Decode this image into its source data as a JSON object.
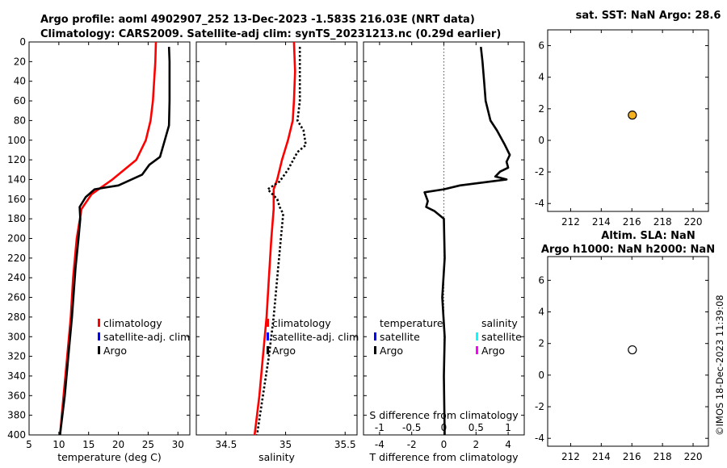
{
  "header": {
    "title_line1": "Argo profile: aoml 4902907_252 13-Dec-2023 -1.583S 216.03E (NRT data)",
    "title_line2": "Climatology: CARS2009. Satellite-adj clim: synTS_20231213.nc (0.29d earlier)"
  },
  "timestamp": "©IMOS 18-Dec-2023 11:39:08",
  "colors": {
    "climatology": "#ff0000",
    "satellite": "#0000ff",
    "argo": "#000000",
    "sat_salinity": "#00ffff",
    "argo_salinity": "#ff00ff",
    "sst_marker": "#f5b21e"
  },
  "chart_data": [
    {
      "id": "temperature",
      "type": "line",
      "xlabel": "temperature (deg C)",
      "ylabel": "",
      "xlim": [
        5,
        32
      ],
      "ylim": [
        0,
        400
      ],
      "y_reversed": true,
      "xticks": [
        "5",
        "10",
        "15",
        "20",
        "25",
        "30"
      ],
      "yticks": [
        "0",
        "20",
        "40",
        "60",
        "80",
        "100",
        "120",
        "140",
        "160",
        "180",
        "200",
        "220",
        "240",
        "260",
        "280",
        "300",
        "320",
        "340",
        "360",
        "380",
        "400"
      ],
      "legend": [
        "climatology",
        "satellite-adj. clim",
        "Argo"
      ],
      "series": [
        {
          "name": "climatology",
          "color": "#ff0000",
          "points": [
            [
              26.3,
              0
            ],
            [
              26.2,
              20
            ],
            [
              26.0,
              40
            ],
            [
              25.8,
              60
            ],
            [
              25.4,
              80
            ],
            [
              24.6,
              100
            ],
            [
              23.0,
              120
            ],
            [
              19.0,
              140
            ],
            [
              15.5,
              155
            ],
            [
              13.8,
              170
            ],
            [
              13.0,
              200
            ],
            [
              12.4,
              240
            ],
            [
              12.0,
              280
            ],
            [
              11.4,
              320
            ],
            [
              10.8,
              360
            ],
            [
              10.2,
              400
            ]
          ]
        },
        {
          "name": "Argo",
          "color": "#000000",
          "points": [
            [
              28.5,
              5
            ],
            [
              28.6,
              20
            ],
            [
              28.6,
              60
            ],
            [
              28.5,
              85
            ],
            [
              27.8,
              100
            ],
            [
              27.0,
              117
            ],
            [
              25.2,
              125
            ],
            [
              24.0,
              135
            ],
            [
              20.0,
              146
            ],
            [
              16.0,
              150
            ],
            [
              14.5,
              158
            ],
            [
              14.0,
              163
            ],
            [
              13.5,
              168
            ],
            [
              13.6,
              180
            ],
            [
              13.3,
              200
            ],
            [
              12.8,
              230
            ],
            [
              12.2,
              280
            ],
            [
              11.6,
              320
            ],
            [
              11.0,
              360
            ],
            [
              10.2,
              400
            ]
          ]
        }
      ]
    },
    {
      "id": "salinity",
      "type": "line",
      "xlabel": "salinity",
      "xlim": [
        34.25,
        35.6
      ],
      "ylim": [
        0,
        400
      ],
      "y_reversed": true,
      "xticks": [
        "34.5",
        "35",
        "35.5"
      ],
      "legend": [
        "climatology",
        "satellite-adj. clim",
        "Argo"
      ],
      "series": [
        {
          "name": "climatology",
          "color": "#ff0000",
          "points": [
            [
              35.07,
              0
            ],
            [
              35.08,
              30
            ],
            [
              35.07,
              60
            ],
            [
              35.06,
              80
            ],
            [
              35.02,
              100
            ],
            [
              34.97,
              120
            ],
            [
              34.93,
              140
            ],
            [
              34.9,
              150
            ],
            [
              34.9,
              170
            ],
            [
              34.88,
              200
            ],
            [
              34.86,
              240
            ],
            [
              34.84,
              280
            ],
            [
              34.81,
              320
            ],
            [
              34.78,
              360
            ],
            [
              34.74,
              400
            ]
          ]
        },
        {
          "name": "Argo",
          "color": "#000000",
          "dashed": true,
          "points": [
            [
              35.12,
              5
            ],
            [
              35.12,
              60
            ],
            [
              35.1,
              80
            ],
            [
              35.15,
              90
            ],
            [
              35.17,
              105
            ],
            [
              35.1,
              112
            ],
            [
              35.02,
              130
            ],
            [
              34.95,
              142
            ],
            [
              34.85,
              150
            ],
            [
              34.93,
              160
            ],
            [
              34.95,
              168
            ],
            [
              34.98,
              175
            ],
            [
              34.96,
              200
            ],
            [
              34.93,
              240
            ],
            [
              34.9,
              280
            ],
            [
              34.86,
              320
            ],
            [
              34.81,
              360
            ],
            [
              34.76,
              400
            ]
          ]
        }
      ]
    },
    {
      "id": "difference",
      "type": "line",
      "xlabel": "T difference from climatology",
      "toplabel": "S difference from climatology",
      "xlim": [
        -5,
        5
      ],
      "ylim": [
        0,
        400
      ],
      "y_reversed": true,
      "xticks": [
        "-4",
        "-2",
        "0",
        "2",
        "4"
      ],
      "top_ticks": [
        "-1",
        "-0.5",
        "0",
        "0.5",
        "1"
      ],
      "legend_temperature": [
        "temperature",
        "satellite",
        "Argo"
      ],
      "legend_salinity": [
        "salinity",
        "satellite",
        "Argo"
      ],
      "series": [
        {
          "name": "T difference",
          "color": "#000000",
          "points": [
            [
              2.3,
              5
            ],
            [
              2.4,
              20
            ],
            [
              2.5,
              40
            ],
            [
              2.6,
              60
            ],
            [
              2.9,
              80
            ],
            [
              3.3,
              90
            ],
            [
              3.8,
              105
            ],
            [
              4.1,
              115
            ],
            [
              3.9,
              122
            ],
            [
              4.0,
              128
            ],
            [
              3.5,
              132
            ],
            [
              3.2,
              137
            ],
            [
              3.9,
              140
            ],
            [
              1.0,
              146
            ],
            [
              0.0,
              150
            ],
            [
              -1.2,
              153
            ],
            [
              -1.0,
              162
            ],
            [
              -1.1,
              168
            ],
            [
              -0.6,
              172
            ],
            [
              0.0,
              180
            ],
            [
              0.05,
              220
            ],
            [
              -0.1,
              260
            ],
            [
              0.05,
              300
            ],
            [
              0.0,
              340
            ],
            [
              0.05,
              400
            ]
          ]
        }
      ]
    },
    {
      "id": "sst",
      "type": "scatter",
      "title": "sat. SST: NaN Argo: 28.6",
      "xlim": [
        210.5,
        221
      ],
      "ylim": [
        -4.5,
        7
      ],
      "xticks": [
        "212",
        "214",
        "216",
        "218",
        "220"
      ],
      "yticks": [
        "-4",
        "-2",
        "0",
        "2",
        "4",
        "6"
      ],
      "points": [
        {
          "x": 216.03,
          "y": 1.6,
          "filled": true
        }
      ]
    },
    {
      "id": "sla",
      "type": "scatter",
      "title": "Altim. SLA: NaN",
      "title2": "Argo h1000: NaN h2000: NaN",
      "xlim": [
        210.5,
        221
      ],
      "ylim": [
        -4.5,
        7.5
      ],
      "xticks": [
        "212",
        "214",
        "216",
        "218",
        "220"
      ],
      "yticks": [
        "-4",
        "-2",
        "0",
        "2",
        "4",
        "6"
      ],
      "points": [
        {
          "x": 216.03,
          "y": 1.6,
          "filled": false
        }
      ]
    }
  ]
}
